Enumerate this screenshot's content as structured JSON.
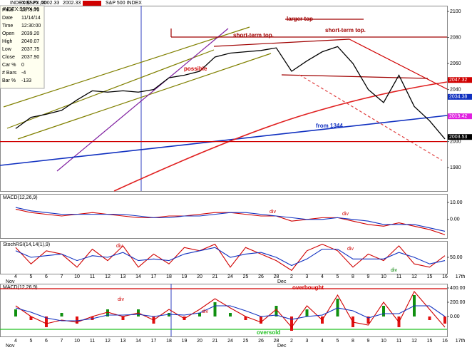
{
  "chart_data": [
    {
      "type": "line",
      "title": "INDEX:$SPX,60",
      "subtitle": "S&P 500 INDEX",
      "header_values": [
        "2032.25",
        "2002.33",
        "2002.33"
      ],
      "info": [
        [
          "Price",
          "2079.75"
        ],
        [
          "Date",
          "11/14/14"
        ],
        [
          "Time",
          "12:30:00"
        ],
        [
          "Open",
          "2039.20"
        ],
        [
          "High",
          "2040.07"
        ],
        [
          "Low",
          "2037.75"
        ],
        [
          "Close",
          "2037.90"
        ],
        [
          "Car %",
          "0"
        ],
        [
          "# Bars",
          "-4"
        ],
        [
          "Bar %",
          "-133"
        ]
      ],
      "categories": [
        "4",
        "5",
        "6",
        "7",
        "10",
        "11",
        "12",
        "13",
        "14",
        "17",
        "18",
        "19",
        "20",
        "21",
        "24",
        "25",
        "26",
        "28",
        "2",
        "3",
        "4",
        "5",
        "8",
        "9",
        "10",
        "11",
        "12",
        "15",
        "16",
        "17th"
      ],
      "months": [
        "Nov",
        "Dec"
      ],
      "values": [
        2010,
        2018.6,
        2021,
        2024,
        2032,
        2039,
        2038,
        2039,
        2038,
        2040,
        2049,
        2051,
        2054,
        2065,
        2068,
        2069,
        2070,
        2072,
        2054,
        2062,
        2069,
        2073,
        2060,
        2040,
        2030,
        2051,
        2027,
        2016,
        2002,
        null
      ],
      "color": "#000000",
      "ylim": [
        1962,
        2104.4
      ],
      "yticks": [
        2100,
        2080,
        2060,
        2040,
        2020,
        2000,
        1980
      ],
      "levels": [
        {
          "value": 2000,
          "color": "#d00000"
        }
      ],
      "markers": [
        {
          "value": 2047.32,
          "color": "#d00000"
        },
        {
          "value": 2034.38,
          "color": "#1030c0"
        },
        {
          "value": 2019.42,
          "color": "#e020e0"
        },
        {
          "value": 2003.53,
          "color": "#000000"
        }
      ],
      "annotations": [
        {
          "text": "larger top",
          "color": "#a00000"
        },
        {
          "text": "short-term top.",
          "color": "#a00000"
        },
        {
          "text": "short-term top.",
          "color": "#a00000"
        },
        {
          "text": "possible",
          "color": "#d00000"
        },
        {
          "text": "from 1344",
          "color": "#1030c0"
        }
      ]
    },
    {
      "type": "line",
      "title": "MACD(12,26,9)",
      "ylim": [
        -11,
        15
      ],
      "yticks": [
        {
          "value": 10,
          "label": "10.00"
        },
        {
          "value": 0,
          "label": "0.00"
        }
      ],
      "series": [
        {
          "color": "#d00000",
          "values": [
            6,
            4,
            3,
            2,
            3,
            4,
            3,
            2,
            1,
            1,
            2,
            2,
            3,
            4,
            4,
            3,
            2,
            2,
            -1,
            0,
            1,
            1,
            -1,
            -3,
            -4,
            -2,
            -4,
            -6,
            -9,
            null
          ]
        },
        {
          "color": "#1030c0",
          "values": [
            7,
            5,
            4,
            3,
            3,
            3,
            3,
            3,
            2,
            1,
            1,
            2,
            2,
            3,
            4,
            4,
            3,
            2,
            1,
            0,
            0,
            1,
            0,
            -1,
            -3,
            -3,
            -3,
            -5,
            -7,
            null
          ]
        }
      ],
      "annotations": [
        {
          "text": "div",
          "color": "#d00000"
        },
        {
          "text": "div",
          "color": "#d00000"
        }
      ]
    },
    {
      "type": "line",
      "title": "StochRSI(14,14(1),9)",
      "ylim": [
        0,
        100
      ],
      "yticks": [
        {
          "value": 50,
          "label": "50.00"
        }
      ],
      "series": [
        {
          "color": "#d00000",
          "values": [
            80,
            30,
            70,
            60,
            20,
            75,
            40,
            85,
            20,
            60,
            30,
            80,
            70,
            90,
            20,
            80,
            60,
            40,
            10,
            70,
            90,
            70,
            20,
            60,
            40,
            85,
            30,
            20,
            55,
            null
          ]
        },
        {
          "color": "#1030c0",
          "values": [
            70,
            50,
            55,
            60,
            40,
            55,
            50,
            65,
            40,
            45,
            40,
            60,
            70,
            80,
            50,
            60,
            65,
            50,
            25,
            45,
            75,
            75,
            45,
            45,
            45,
            65,
            50,
            30,
            40,
            null
          ]
        }
      ],
      "annotations": [
        {
          "text": "div",
          "color": "#d00000"
        },
        {
          "text": "div",
          "color": "#d00000"
        },
        {
          "text": "div",
          "color": "#008000"
        }
      ]
    },
    {
      "type": "bar",
      "title": "MACD(12,26,9)",
      "ylim": [
        -280,
        460
      ],
      "yticks": [
        {
          "value": 400,
          "label": "400.00"
        },
        {
          "value": 200,
          "label": "200.00"
        },
        {
          "value": 0,
          "label": "0.00"
        }
      ],
      "up_color": "#109010",
      "down_color": "#e01010",
      "values": [
        100,
        -50,
        -150,
        50,
        -100,
        -50,
        100,
        -50,
        100,
        -100,
        50,
        -50,
        50,
        200,
        50,
        -50,
        -100,
        150,
        -200,
        100,
        -100,
        250,
        -150,
        -100,
        150,
        -150,
        300,
        -50,
        -100,
        null
      ],
      "series": [
        {
          "color": "#d00000",
          "values": [
            150,
            0,
            -100,
            -50,
            -80,
            0,
            60,
            0,
            50,
            -50,
            100,
            -30,
            100,
            250,
            120,
            0,
            -80,
            100,
            -150,
            150,
            -50,
            300,
            -80,
            -120,
            200,
            -80,
            350,
            100,
            -150,
            null
          ]
        },
        {
          "color": "#1030c0",
          "values": [
            120,
            60,
            -20,
            -60,
            -60,
            -30,
            20,
            20,
            30,
            0,
            30,
            20,
            50,
            150,
            150,
            80,
            0,
            20,
            -40,
            0,
            20,
            120,
            80,
            -20,
            40,
            40,
            150,
            150,
            0,
            null
          ]
        }
      ],
      "levels": [
        {
          "value": 390,
          "color": "#d00000",
          "label": "overbought"
        },
        {
          "value": -180,
          "color": "#20c020",
          "label": "oversold"
        }
      ],
      "annotations": [
        {
          "text": "div",
          "color": "#d00000"
        },
        {
          "text": "div",
          "color": "#d00000"
        }
      ]
    }
  ]
}
